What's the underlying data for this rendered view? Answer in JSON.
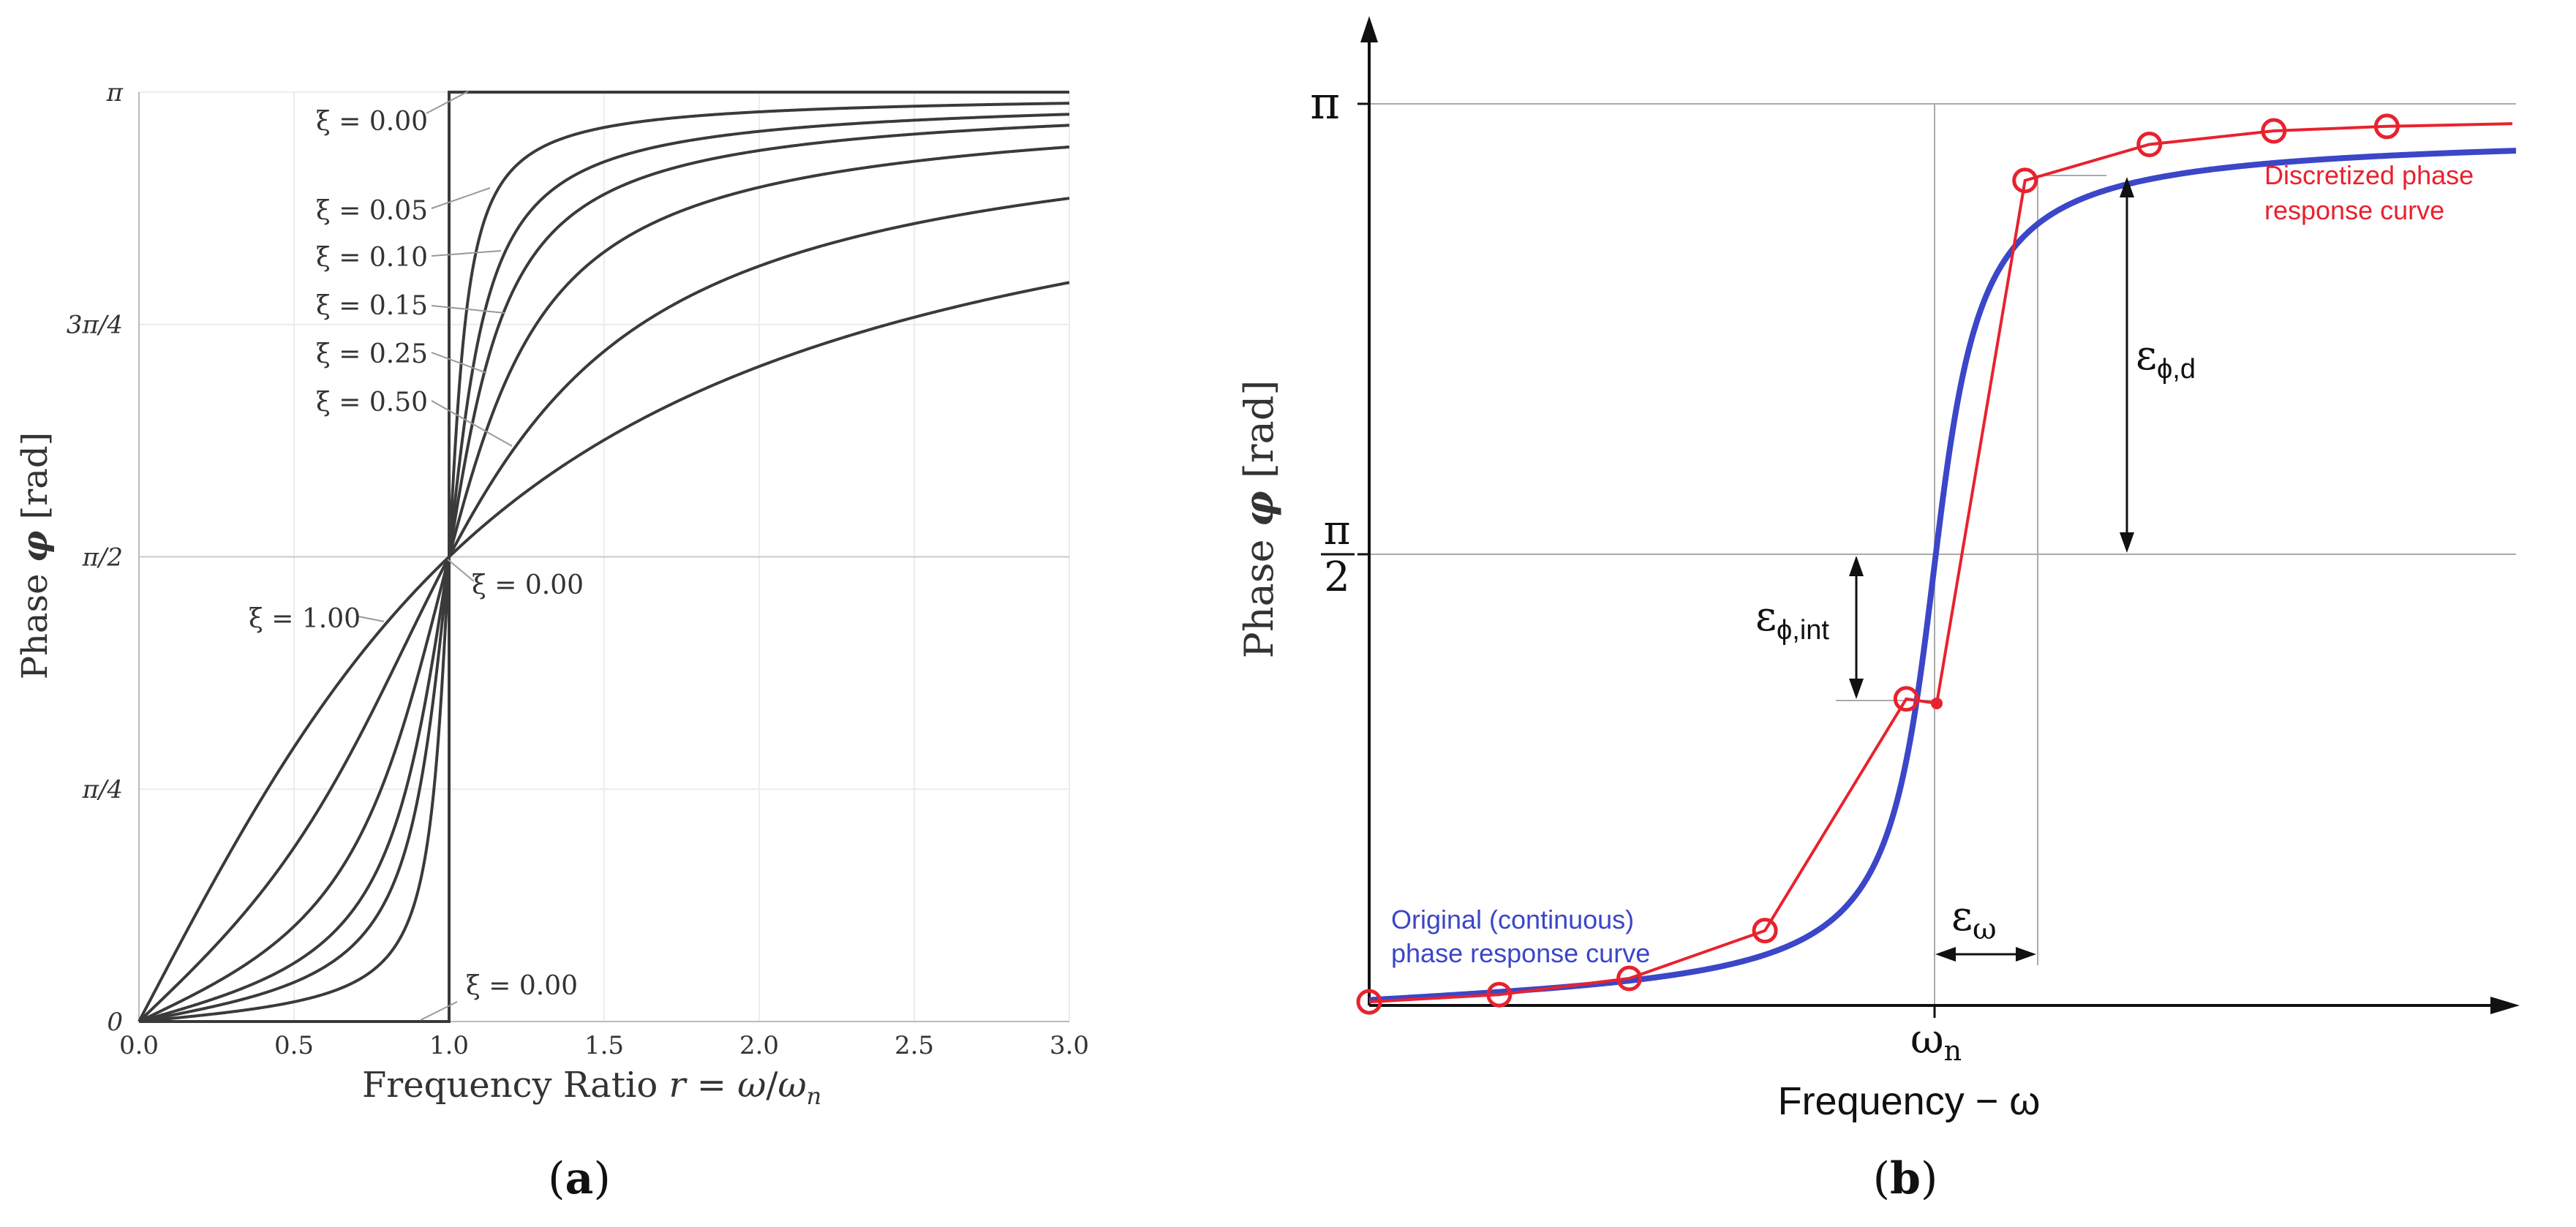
{
  "chart_data": [
    {
      "panel": "(a)",
      "type": "line",
      "xlabel_prefix": "Frequency Ratio ",
      "xlabel_math": "r = ω/ωn",
      "ylabel": "Phase φ [rad]",
      "xlim": [
        0,
        3
      ],
      "ylim": [
        0,
        3.14159
      ],
      "x_ticks": [
        "0.0",
        "0.5",
        "1.0",
        "1.5",
        "2.0",
        "2.5",
        "3.0"
      ],
      "x_tick_values": [
        0,
        0.5,
        1.0,
        1.5,
        2.0,
        2.5,
        3.0
      ],
      "y_ticks": [
        "0",
        "π/4",
        "π/2",
        "3π/4",
        "π"
      ],
      "y_tick_values": [
        0,
        0.7854,
        1.5708,
        2.3562,
        3.14159
      ],
      "series": [
        {
          "name": "ξ = 0.00",
          "xi": 0.0
        },
        {
          "name": "ξ = 0.05",
          "xi": 0.05
        },
        {
          "name": "ξ = 0.10",
          "xi": 0.1
        },
        {
          "name": "ξ = 0.15",
          "xi": 0.15
        },
        {
          "name": "ξ = 0.25",
          "xi": 0.25
        },
        {
          "name": "ξ = 0.50",
          "xi": 0.5
        },
        {
          "name": "ξ = 1.00",
          "xi": 1.0
        }
      ],
      "annotations": {
        "top_zero": "ξ = 0.00",
        "xi005": "ξ = 0.05",
        "xi010": "ξ = 0.10",
        "xi015": "ξ = 0.15",
        "xi025": "ξ = 0.25",
        "xi050": "ξ = 0.50",
        "xi100": "ξ = 1.00",
        "mid_zero": "ξ = 0.00",
        "bottom_zero": "ξ = 0.00"
      },
      "caption": "(a)"
    },
    {
      "panel": "(b)",
      "type": "line",
      "xlabel": "Frequency − ω",
      "ylabel": "Phase φ [rad]",
      "y_tick_pi": "π",
      "y_tick_half_num": "π",
      "y_tick_half_den": "2",
      "x_tick_omega_n": "ωn",
      "series": [
        {
          "name": "Original (continuous) phase response curve",
          "legend_line1": "Original (continuous)",
          "legend_line2": "phase response curve",
          "color": "#3b46c8"
        },
        {
          "name": "Discretized phase response curve",
          "legend_line1": "Discretized phase",
          "legend_line2": "response curve",
          "color": "#e8222e"
        }
      ],
      "discrete_points_phase_fraction": [
        0.004,
        0.012,
        0.03,
        0.083,
        0.34,
        0.915,
        0.955,
        0.97,
        0.975
      ],
      "midpoint_phase_fraction": 0.335,
      "errors": {
        "eps_phi_d": "εϕ,d",
        "eps_phi_int": "εϕ,int",
        "eps_omega": "εω"
      },
      "caption": "(b)"
    }
  ]
}
